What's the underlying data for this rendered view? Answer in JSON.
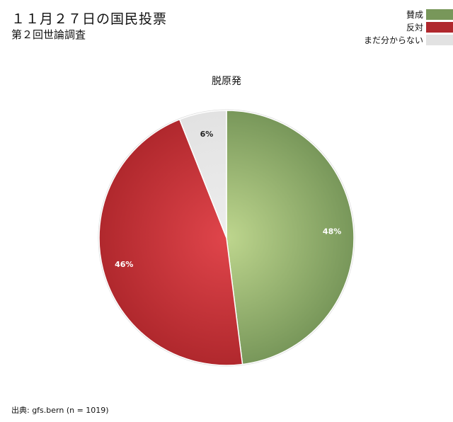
{
  "header": {
    "title": "１１月２７日の国民投票",
    "subtitle": "第２回世論調査"
  },
  "legend": {
    "items": [
      {
        "label": "賛成",
        "color": "#78975a"
      },
      {
        "label": "反対",
        "color": "#b0282d"
      },
      {
        "label": "まだ分からない",
        "color": "#e2e2e2"
      }
    ]
  },
  "chart_data": {
    "type": "pie",
    "title": "脱原発",
    "slices": [
      {
        "label": "賛成",
        "value": 48,
        "display": "48%",
        "color": "#78975a",
        "highlight": "#bed68e"
      },
      {
        "label": "反対",
        "value": 46,
        "display": "46%",
        "color": "#b0282d",
        "highlight": "#e0454b"
      },
      {
        "label": "まだ分からない",
        "value": 6,
        "display": "6%",
        "color": "#e2e2e2",
        "highlight": "#ededed"
      }
    ],
    "start": "12 o'clock",
    "direction": "clockwise"
  },
  "footer": {
    "source": "出典: gfs.bern (n = 1019)"
  }
}
